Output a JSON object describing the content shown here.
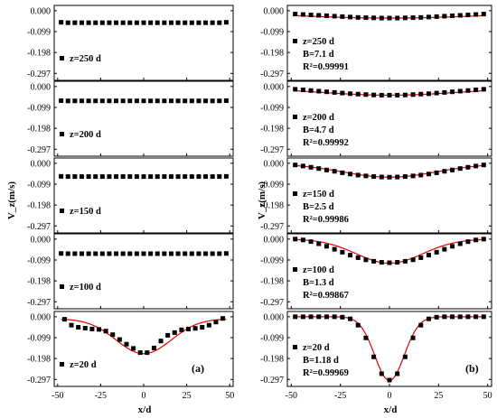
{
  "figure": {
    "ylabel": "V_z(m/s)",
    "xlabel": "x/d",
    "x_ticks": [
      "-50",
      "-25",
      "0",
      "25",
      "50"
    ],
    "y_ticks": [
      "0.000",
      "-0.099",
      "-0.198",
      "-0.297"
    ],
    "panel_tags": [
      "(a)",
      "(b)"
    ]
  },
  "chart_data": [
    {
      "type": "scatter",
      "column": "a",
      "row": 0,
      "title": "",
      "xlabel": "x/d",
      "ylabel": "V_z(m/s)",
      "xlim": [
        -52,
        52
      ],
      "ylim": [
        -0.33,
        0.025
      ],
      "labels": [
        "z=250 d"
      ],
      "series": [
        {
          "name": "z=250 d",
          "x": [
            -48,
            -44,
            -40,
            -36,
            -32,
            -28,
            -24,
            -20,
            -16,
            -12,
            -8,
            -4,
            0,
            4,
            8,
            12,
            16,
            20,
            24,
            28,
            32,
            36,
            40,
            44,
            48
          ],
          "y": [
            -0.055,
            -0.057,
            -0.057,
            -0.057,
            -0.057,
            -0.057,
            -0.057,
            -0.057,
            -0.057,
            -0.057,
            -0.057,
            -0.057,
            -0.057,
            -0.057,
            -0.057,
            -0.057,
            -0.057,
            -0.057,
            -0.057,
            -0.057,
            -0.057,
            -0.057,
            -0.057,
            -0.057,
            -0.055
          ]
        }
      ]
    },
    {
      "type": "scatter",
      "column": "a",
      "row": 1,
      "title": "",
      "xlabel": "x/d",
      "ylabel": "V_z(m/s)",
      "xlim": [
        -52,
        52
      ],
      "ylim": [
        -0.33,
        0.025
      ],
      "labels": [
        "z=200 d"
      ],
      "series": [
        {
          "name": "z=200 d",
          "x": [
            -48,
            -44,
            -40,
            -36,
            -32,
            -28,
            -24,
            -20,
            -16,
            -12,
            -8,
            -4,
            0,
            4,
            8,
            12,
            16,
            20,
            24,
            28,
            32,
            36,
            40,
            44,
            48
          ],
          "y": [
            -0.067,
            -0.068,
            -0.068,
            -0.068,
            -0.068,
            -0.068,
            -0.068,
            -0.068,
            -0.068,
            -0.068,
            -0.068,
            -0.068,
            -0.068,
            -0.068,
            -0.068,
            -0.068,
            -0.068,
            -0.068,
            -0.068,
            -0.068,
            -0.068,
            -0.068,
            -0.068,
            -0.068,
            -0.067
          ]
        }
      ]
    },
    {
      "type": "scatter",
      "column": "a",
      "row": 2,
      "title": "",
      "xlabel": "x/d",
      "ylabel": "V_z(m/s)",
      "xlim": [
        -52,
        52
      ],
      "ylim": [
        -0.33,
        0.025
      ],
      "labels": [
        "z=150 d"
      ],
      "series": [
        {
          "name": "z=150 d",
          "x": [
            -48,
            -44,
            -40,
            -36,
            -32,
            -28,
            -24,
            -20,
            -16,
            -12,
            -8,
            -4,
            0,
            4,
            8,
            12,
            16,
            20,
            24,
            28,
            32,
            36,
            40,
            44,
            48
          ],
          "y": [
            -0.062,
            -0.063,
            -0.063,
            -0.063,
            -0.063,
            -0.063,
            -0.063,
            -0.063,
            -0.063,
            -0.063,
            -0.063,
            -0.063,
            -0.063,
            -0.063,
            -0.063,
            -0.063,
            -0.063,
            -0.063,
            -0.063,
            -0.063,
            -0.063,
            -0.063,
            -0.063,
            -0.063,
            -0.062
          ]
        }
      ]
    },
    {
      "type": "scatter",
      "column": "a",
      "row": 3,
      "title": "",
      "xlabel": "x/d",
      "ylabel": "V_z(m/s)",
      "xlim": [
        -52,
        52
      ],
      "ylim": [
        -0.33,
        0.025
      ],
      "labels": [
        "z=100 d"
      ],
      "series": [
        {
          "name": "z=100 d",
          "x": [
            -48,
            -44,
            -40,
            -36,
            -32,
            -28,
            -24,
            -20,
            -16,
            -12,
            -8,
            -4,
            0,
            4,
            8,
            12,
            16,
            20,
            24,
            28,
            32,
            36,
            40,
            44,
            48
          ],
          "y": [
            -0.068,
            -0.069,
            -0.069,
            -0.069,
            -0.069,
            -0.069,
            -0.069,
            -0.069,
            -0.069,
            -0.069,
            -0.069,
            -0.069,
            -0.069,
            -0.069,
            -0.069,
            -0.069,
            -0.069,
            -0.069,
            -0.069,
            -0.069,
            -0.069,
            -0.069,
            -0.069,
            -0.069,
            -0.068
          ]
        }
      ]
    },
    {
      "type": "scatter",
      "column": "a",
      "row": 4,
      "title": "",
      "xlabel": "x/d",
      "ylabel": "V_z(m/s)",
      "xlim": [
        -52,
        52
      ],
      "ylim": [
        -0.33,
        0.025
      ],
      "labels": [
        "z=20 d"
      ],
      "series": [
        {
          "name": "z=20 d",
          "x": [
            -46,
            -42,
            -38,
            -34,
            -30,
            -26,
            -22,
            -18,
            -14,
            -10,
            -6,
            -2,
            2,
            6,
            10,
            14,
            18,
            22,
            26,
            30,
            34,
            38,
            42,
            46
          ],
          "y": [
            -0.012,
            -0.04,
            -0.05,
            -0.054,
            -0.058,
            -0.06,
            -0.068,
            -0.085,
            -0.108,
            -0.13,
            -0.15,
            -0.17,
            -0.17,
            -0.148,
            -0.115,
            -0.088,
            -0.075,
            -0.062,
            -0.058,
            -0.055,
            -0.05,
            -0.04,
            -0.025,
            -0.008
          ]
        },
        {
          "name": "",
          "type": "line",
          "model": "gaussian",
          "amplitude": -0.165,
          "center": 0,
          "sigma": 16,
          "baseline": -0.01
        }
      ]
    },
    {
      "type": "scatter",
      "column": "b",
      "row": 0,
      "title": "",
      "xlabel": "x/d",
      "ylabel": "V_z(m/s)",
      "xlim": [
        -52,
        52
      ],
      "ylim": [
        -0.33,
        0.025
      ],
      "labels": [
        "z=250 d",
        "B=7.1 d",
        "R²=0.99991"
      ],
      "series": [
        {
          "name": "z=250 d",
          "x": [
            -48,
            -44,
            -40,
            -36,
            -32,
            -28,
            -24,
            -20,
            -16,
            -12,
            -8,
            -4,
            0,
            4,
            8,
            12,
            16,
            20,
            24,
            28,
            32,
            36,
            40,
            44,
            48
          ],
          "y": [
            -0.016,
            -0.018,
            -0.02,
            -0.022,
            -0.024,
            -0.026,
            -0.028,
            -0.03,
            -0.032,
            -0.033,
            -0.034,
            -0.035,
            -0.035,
            -0.035,
            -0.034,
            -0.033,
            -0.032,
            -0.03,
            -0.028,
            -0.026,
            -0.024,
            -0.022,
            -0.02,
            -0.018,
            -0.016
          ]
        },
        {
          "name": "",
          "type": "line",
          "model": "fit",
          "amplitude": -0.022,
          "center": 0,
          "sigma": 40,
          "baseline": -0.013
        }
      ]
    },
    {
      "type": "scatter",
      "column": "b",
      "row": 1,
      "title": "",
      "xlabel": "x/d",
      "ylabel": "V_z(m/s)",
      "xlim": [
        -52,
        52
      ],
      "ylim": [
        -0.33,
        0.025
      ],
      "labels": [
        "z=200 d",
        "B=4.7 d",
        "R²=0.99992"
      ],
      "series": [
        {
          "name": "z=200 d",
          "x": [
            -48,
            -44,
            -40,
            -36,
            -32,
            -28,
            -24,
            -20,
            -16,
            -12,
            -8,
            -4,
            0,
            4,
            8,
            12,
            16,
            20,
            24,
            28,
            32,
            36,
            40,
            44,
            48
          ],
          "y": [
            -0.013,
            -0.016,
            -0.019,
            -0.022,
            -0.025,
            -0.028,
            -0.031,
            -0.034,
            -0.036,
            -0.038,
            -0.04,
            -0.041,
            -0.041,
            -0.041,
            -0.04,
            -0.038,
            -0.036,
            -0.034,
            -0.031,
            -0.028,
            -0.025,
            -0.022,
            -0.019,
            -0.016,
            -0.013
          ]
        },
        {
          "name": "",
          "type": "line",
          "model": "fit",
          "amplitude": -0.033,
          "center": 0,
          "sigma": 34,
          "baseline": -0.008
        }
      ]
    },
    {
      "type": "scatter",
      "column": "b",
      "row": 2,
      "title": "",
      "xlabel": "x/d",
      "ylabel": "V_z(m/s)",
      "xlim": [
        -52,
        52
      ],
      "ylim": [
        -0.33,
        0.025
      ],
      "labels": [
        "z=150 d",
        "B=2.5 d",
        "R²=0.99986"
      ],
      "series": [
        {
          "name": "z=150 d",
          "x": [
            -48,
            -44,
            -40,
            -36,
            -32,
            -28,
            -24,
            -20,
            -16,
            -12,
            -8,
            -4,
            0,
            4,
            8,
            12,
            16,
            20,
            24,
            28,
            32,
            36,
            40,
            44,
            48
          ],
          "y": [
            -0.008,
            -0.013,
            -0.019,
            -0.025,
            -0.032,
            -0.038,
            -0.045,
            -0.051,
            -0.056,
            -0.06,
            -0.063,
            -0.065,
            -0.066,
            -0.065,
            -0.063,
            -0.06,
            -0.056,
            -0.051,
            -0.045,
            -0.038,
            -0.032,
            -0.025,
            -0.019,
            -0.013,
            -0.008
          ]
        },
        {
          "name": "",
          "type": "line",
          "model": "fit",
          "amplitude": -0.064,
          "center": 0,
          "sigma": 24,
          "baseline": -0.002
        }
      ]
    },
    {
      "type": "scatter",
      "column": "b",
      "row": 3,
      "title": "",
      "xlabel": "x/d",
      "ylabel": "V_z(m/s)",
      "xlim": [
        -52,
        52
      ],
      "ylim": [
        -0.33,
        0.025
      ],
      "labels": [
        "z=100 d",
        "B=1.3 d",
        "R²=0.99867"
      ],
      "series": [
        {
          "name": "z=100 d",
          "x": [
            -48,
            -44,
            -40,
            -36,
            -32,
            -28,
            -24,
            -20,
            -16,
            -12,
            -8,
            -4,
            0,
            4,
            8,
            12,
            16,
            20,
            24,
            28,
            32,
            36,
            40,
            44,
            48
          ],
          "y": [
            0.0,
            -0.004,
            -0.012,
            -0.022,
            -0.034,
            -0.048,
            -0.062,
            -0.076,
            -0.088,
            -0.098,
            -0.105,
            -0.11,
            -0.112,
            -0.11,
            -0.105,
            -0.098,
            -0.088,
            -0.076,
            -0.062,
            -0.048,
            -0.034,
            -0.022,
            -0.012,
            -0.004,
            0.0
          ]
        },
        {
          "name": "",
          "type": "line",
          "model": "fit",
          "amplitude": -0.114,
          "center": 0,
          "sigma": 17,
          "baseline": 0.0
        }
      ]
    },
    {
      "type": "scatter",
      "column": "b",
      "row": 4,
      "title": "",
      "xlabel": "x/d",
      "ylabel": "V_z(m/s)",
      "xlim": [
        -52,
        52
      ],
      "ylim": [
        -0.33,
        0.025
      ],
      "labels": [
        "z=20 d",
        "B=1.18 d",
        "R²=0.99969"
      ],
      "series": [
        {
          "name": "z=20 d",
          "x": [
            -48,
            -44,
            -40,
            -36,
            -32,
            -28,
            -24,
            -20,
            -16,
            -12,
            -8,
            -4,
            0,
            4,
            8,
            12,
            16,
            20,
            24,
            28,
            32,
            36,
            40,
            44,
            48
          ],
          "y": [
            0.0,
            0.0,
            0.0,
            0.0,
            0.0,
            0.0,
            -0.002,
            -0.01,
            -0.04,
            -0.1,
            -0.19,
            -0.27,
            -0.3,
            -0.27,
            -0.19,
            -0.1,
            -0.04,
            -0.01,
            -0.002,
            0.0,
            0.0,
            0.0,
            0.0,
            0.0,
            0.0
          ]
        },
        {
          "name": "",
          "type": "line",
          "model": "fit",
          "amplitude": -0.302,
          "center": 0,
          "sigma": 7.5,
          "baseline": 0.0
        }
      ]
    }
  ]
}
